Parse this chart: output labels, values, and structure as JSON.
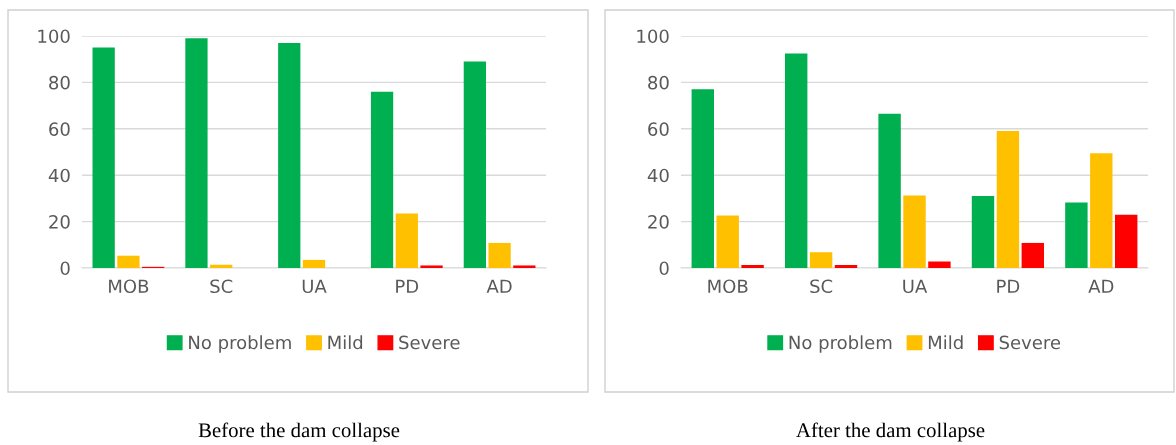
{
  "chart_data": [
    {
      "type": "bar",
      "categories": [
        "MOB",
        "SC",
        "UA",
        "PD",
        "AD"
      ],
      "ylim": [
        0,
        100
      ],
      "yticks": [
        0,
        20,
        40,
        60,
        80,
        100
      ],
      "grid": "y",
      "legend": "bottom",
      "series": [
        {
          "name": "No problem",
          "color": "#00b050",
          "values": [
            95,
            99,
            97,
            76,
            89
          ]
        },
        {
          "name": "Mild",
          "color": "#ffc000",
          "values": [
            5.3,
            1.4,
            3.5,
            23.5,
            10.8
          ]
        },
        {
          "name": "Severe",
          "color": "#ff0000",
          "values": [
            0.5,
            0,
            0,
            1.1,
            1.1
          ]
        }
      ],
      "annotations": [
        "Before the dam collapse"
      ]
    },
    {
      "type": "bar",
      "categories": [
        "MOB",
        "SC",
        "UA",
        "PD",
        "AD"
      ],
      "ylim": [
        0,
        100
      ],
      "yticks": [
        0,
        20,
        40,
        60,
        80,
        100
      ],
      "grid": "y",
      "legend": "bottom",
      "series": [
        {
          "name": "No problem",
          "color": "#00b050",
          "values": [
            77,
            92.5,
            66.5,
            31,
            28.2
          ]
        },
        {
          "name": "Mild",
          "color": "#ffc000",
          "values": [
            22.6,
            6.8,
            31.2,
            59,
            49.5
          ]
        },
        {
          "name": "Severe",
          "color": "#ff0000",
          "values": [
            1.3,
            1.3,
            2.8,
            10.8,
            23
          ]
        }
      ],
      "annotations": [
        "After the dam collapse"
      ]
    }
  ]
}
